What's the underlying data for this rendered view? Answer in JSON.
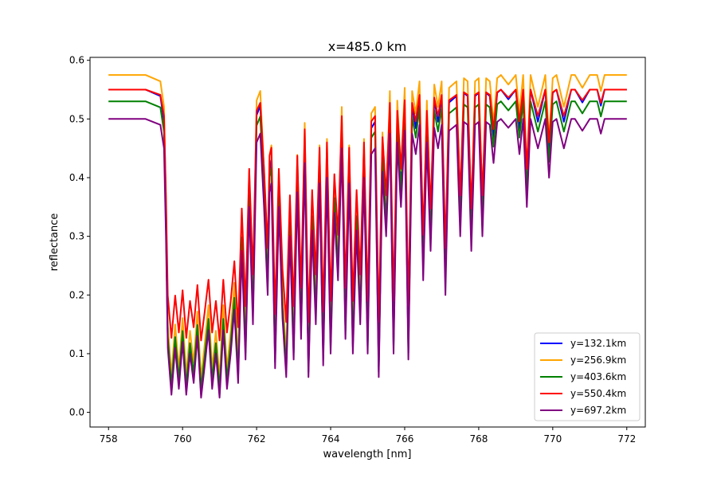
{
  "chart_data": {
    "type": "line",
    "title": "x=485.0 km",
    "xlabel": "wavelength [nm]",
    "ylabel": "reflectance",
    "xlim": [
      757.5,
      772.5
    ],
    "ylim": [
      -0.025,
      0.605
    ],
    "xticks": [
      758,
      760,
      762,
      764,
      766,
      768,
      770,
      772
    ],
    "xtick_labels": [
      "758",
      "760",
      "762",
      "764",
      "766",
      "768",
      "770",
      "772"
    ],
    "yticks": [
      0.0,
      0.1,
      0.2,
      0.3,
      0.4,
      0.5,
      0.6
    ],
    "ytick_labels": [
      "0.0",
      "0.1",
      "0.2",
      "0.3",
      "0.4",
      "0.5",
      "0.6"
    ],
    "grid": false,
    "legend_position": "lower-right",
    "transmission_profile": {
      "x": [
        758.0,
        759.0,
        759.4,
        759.5,
        759.55,
        759.6,
        759.7,
        759.8,
        759.9,
        760.0,
        760.1,
        760.2,
        760.3,
        760.4,
        760.5,
        760.6,
        760.7,
        760.8,
        760.9,
        761.0,
        761.1,
        761.2,
        761.3,
        761.4,
        761.5,
        761.6,
        761.7,
        761.8,
        761.9,
        762.0,
        762.1,
        762.2,
        762.3,
        762.35,
        762.4,
        762.5,
        762.6,
        762.7,
        762.8,
        762.9,
        763.0,
        763.1,
        763.2,
        763.3,
        763.4,
        763.5,
        763.6,
        763.7,
        763.8,
        763.9,
        764.0,
        764.1,
        764.2,
        764.3,
        764.4,
        764.5,
        764.6,
        764.7,
        764.8,
        764.9,
        765.0,
        765.1,
        765.2,
        765.3,
        765.4,
        765.5,
        765.6,
        765.7,
        765.8,
        765.9,
        766.0,
        766.1,
        766.2,
        766.3,
        766.4,
        766.5,
        766.6,
        766.7,
        766.8,
        766.9,
        767.0,
        767.1,
        767.2,
        767.3,
        767.4,
        767.5,
        767.6,
        767.7,
        767.8,
        767.9,
        768.0,
        768.1,
        768.2,
        768.3,
        768.4,
        768.5,
        768.6,
        768.8,
        769.0,
        769.1,
        769.2,
        769.3,
        769.4,
        769.6,
        769.8,
        769.9,
        770.0,
        770.1,
        770.3,
        770.5,
        770.6,
        770.8,
        771.0,
        771.2,
        771.3,
        771.4,
        771.6,
        771.8,
        772.0
      ],
      "t": [
        1.0,
        1.0,
        0.98,
        0.9,
        0.6,
        0.22,
        0.06,
        0.22,
        0.08,
        0.24,
        0.06,
        0.2,
        0.1,
        0.26,
        0.05,
        0.16,
        0.28,
        0.08,
        0.2,
        0.05,
        0.28,
        0.08,
        0.2,
        0.35,
        0.1,
        0.55,
        0.18,
        0.7,
        0.3,
        0.92,
        0.95,
        0.7,
        0.4,
        0.75,
        0.78,
        0.15,
        0.7,
        0.32,
        0.12,
        0.6,
        0.18,
        0.75,
        0.25,
        0.85,
        0.12,
        0.62,
        0.3,
        0.78,
        0.16,
        0.8,
        0.2,
        0.68,
        0.45,
        0.9,
        0.25,
        0.78,
        0.2,
        0.62,
        0.3,
        0.8,
        0.2,
        0.88,
        0.9,
        0.12,
        0.82,
        0.6,
        0.95,
        0.2,
        0.92,
        0.7,
        0.96,
        0.18,
        0.95,
        0.88,
        0.98,
        0.45,
        0.92,
        0.55,
        0.97,
        0.9,
        0.98,
        0.4,
        0.96,
        0.97,
        0.98,
        0.6,
        0.99,
        0.98,
        0.55,
        0.98,
        0.99,
        0.6,
        0.99,
        0.98,
        0.85,
        0.99,
        1.0,
        0.97,
        1.0,
        0.88,
        1.0,
        0.7,
        1.0,
        0.9,
        1.0,
        0.8,
        0.99,
        1.0,
        0.9,
        1.0,
        1.0,
        0.96,
        1.0,
        1.0,
        0.95,
        1.0,
        1.0,
        1.0,
        1.0
      ]
    },
    "series": [
      {
        "name": "y=132.1km",
        "color": "#0000ff",
        "continuum": 0.55,
        "min_reflectance": 0.003
      },
      {
        "name": "y=256.9km",
        "color": "#ffa500",
        "continuum": 0.575,
        "min_reflectance": 0.03
      },
      {
        "name": "y=403.6km",
        "color": "#008000",
        "continuum": 0.53,
        "min_reflectance": 0.015
      },
      {
        "name": "y=550.4km",
        "color": "#ff0000",
        "continuum": 0.55,
        "min_reflectance": 0.1
      },
      {
        "name": "y=697.2km",
        "color": "#800080",
        "continuum": 0.5,
        "min_reflectance": 0.0
      }
    ]
  }
}
